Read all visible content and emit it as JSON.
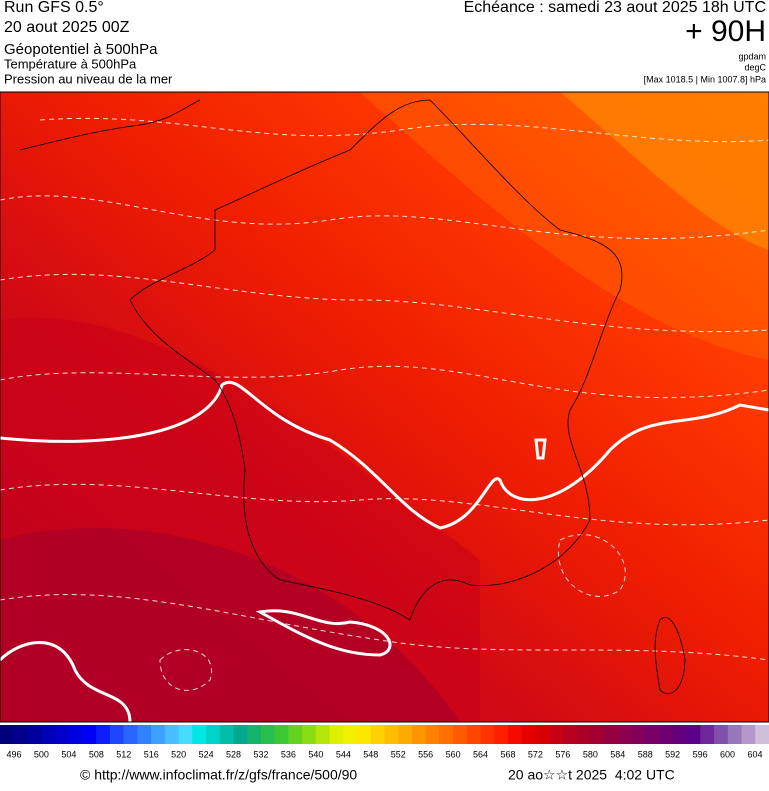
{
  "header": {
    "run": "Run GFS 0.5°",
    "run_date": "20 aout 2025 00Z",
    "field": "Géopotentiel à 500hPa",
    "field2": "Température à 500hPa",
    "field3": "Pression au niveau de la mer",
    "forecast": "Echéance : samedi 23 aout 2025 18h UTC",
    "lead": "+ 90H",
    "unit1": "gpdam",
    "unit2": "degC",
    "range": "[Max 1018.5 | Min 1007.8] hPa"
  },
  "colorbar": {
    "ticks": [
      496,
      500,
      504,
      508,
      512,
      516,
      520,
      524,
      528,
      532,
      536,
      540,
      544,
      548,
      552,
      556,
      560,
      564,
      568,
      572,
      576,
      580,
      584,
      588,
      592,
      596,
      600,
      604
    ],
    "colors": [
      "#00007f",
      "#00008c",
      "#00009e",
      "#0000b4",
      "#0000ca",
      "#0000e0",
      "#0000f5",
      "#0a1eff",
      "#1e46ff",
      "#2864ff",
      "#3282ff",
      "#3ca0ff",
      "#46beff",
      "#46dcff",
      "#00e6e6",
      "#00d2c8",
      "#00beaa",
      "#00aa8c",
      "#14b46e",
      "#28be50",
      "#3cc832",
      "#64d21e",
      "#8cdc14",
      "#b4e60a",
      "#dcf000",
      "#f0f000",
      "#ffe600",
      "#ffd200",
      "#ffbe00",
      "#ffaa00",
      "#ff9600",
      "#ff8200",
      "#ff6e00",
      "#ff5a00",
      "#ff4600",
      "#ff3200",
      "#ff1e00",
      "#f50a00",
      "#e60000",
      "#d70000",
      "#c80014",
      "#b9001e",
      "#aa0028",
      "#a00032",
      "#960040",
      "#8c004e",
      "#82005c",
      "#780066",
      "#6e0072",
      "#64007e",
      "#5a008c",
      "#6e289b",
      "#8250aa",
      "#9678b9",
      "#b496c8",
      "#d2bedc"
    ]
  },
  "footer": {
    "url": "© http://www.infoclimat.fr/z/gfs/france/500/90",
    "generated": "20 ao☆☆t 2025  4:02 UTC"
  }
}
